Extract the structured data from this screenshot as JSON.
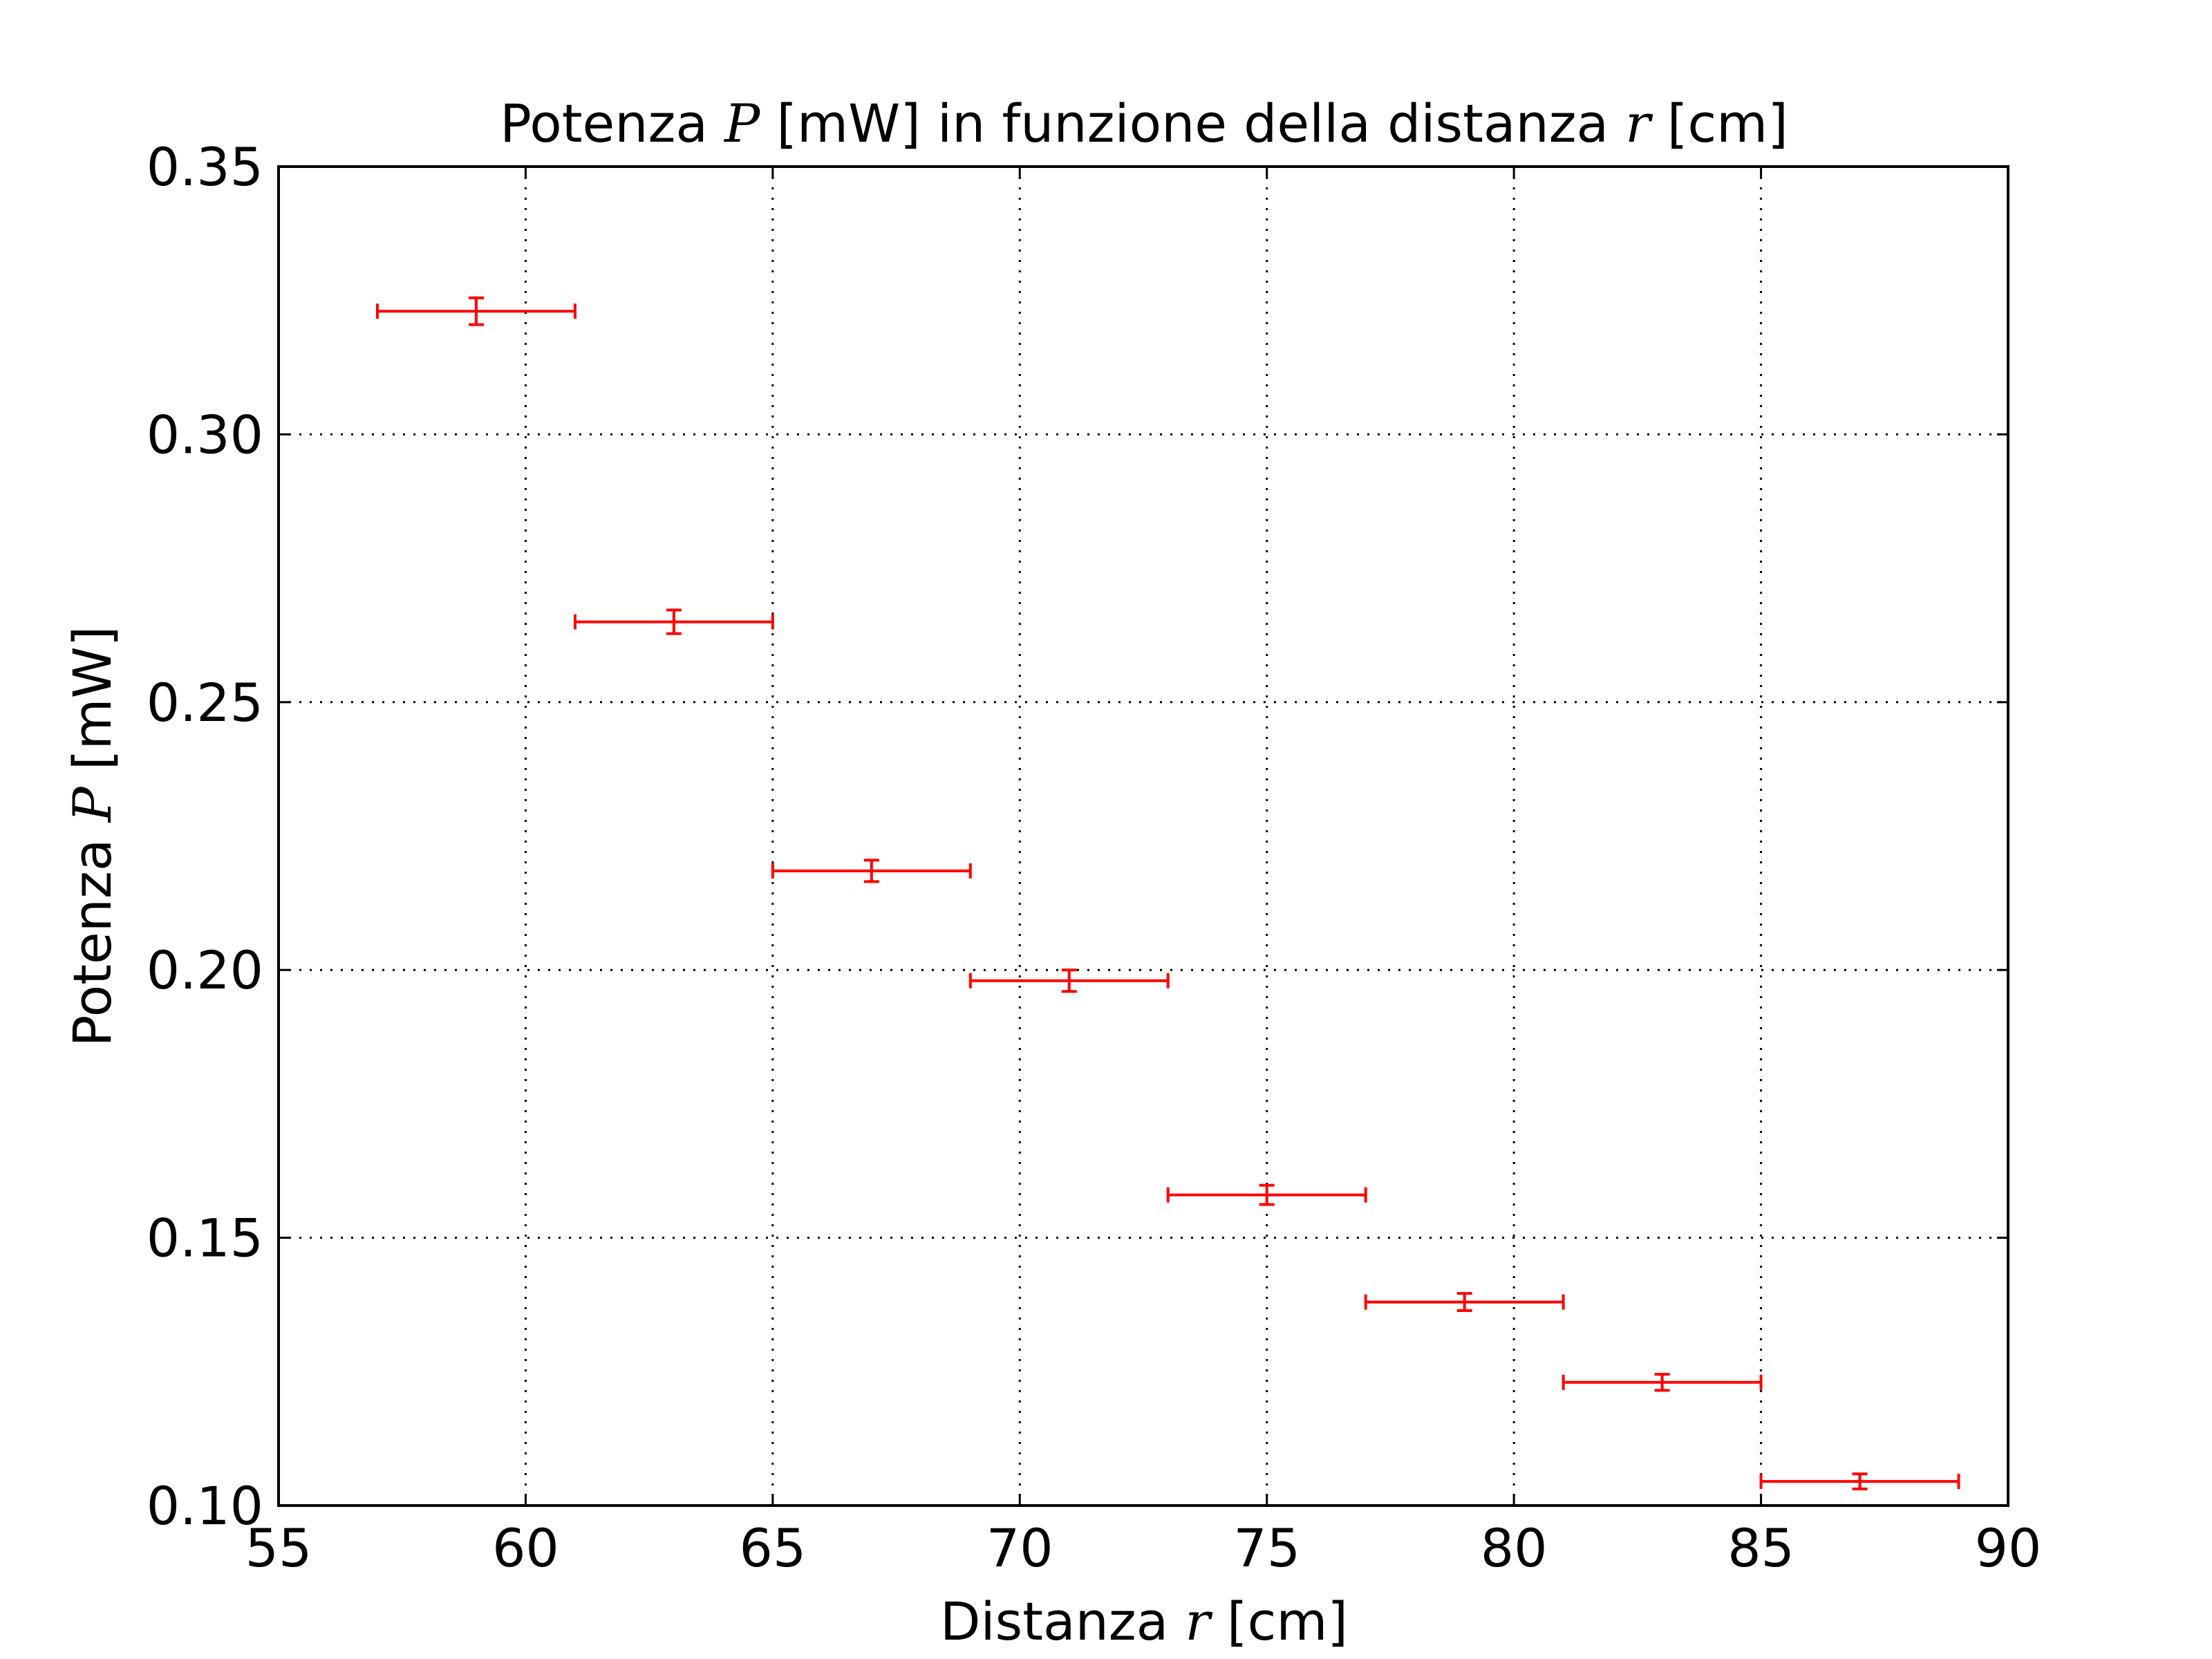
{
  "chart_data": {
    "type": "scatter",
    "title": {
      "prefix": "Potenza ",
      "var1": "P",
      "middle": " [mW] in funzione della distanza ",
      "var2": "r",
      "suffix": " [cm]"
    },
    "xlabel": {
      "prefix": "Distanza ",
      "var": "r",
      "suffix": " [cm]"
    },
    "ylabel": {
      "prefix": "Potenza ",
      "var": "P",
      "suffix": " [mW]"
    },
    "xlim": [
      55,
      90
    ],
    "ylim": [
      0.1,
      0.35
    ],
    "xticks": [
      "55",
      "60",
      "65",
      "70",
      "75",
      "80",
      "85",
      "90"
    ],
    "yticks": [
      "0.10",
      "0.15",
      "0.20",
      "0.25",
      "0.30",
      "0.35"
    ],
    "grid": true,
    "marker_color": "#ff0000",
    "points": [
      {
        "x": 59,
        "y": 0.323,
        "xerr": 2,
        "yerr": 0.0025
      },
      {
        "x": 63,
        "y": 0.265,
        "xerr": 2,
        "yerr": 0.0022
      },
      {
        "x": 67,
        "y": 0.2185,
        "xerr": 2,
        "yerr": 0.002
      },
      {
        "x": 71,
        "y": 0.198,
        "xerr": 2,
        "yerr": 0.002
      },
      {
        "x": 75,
        "y": 0.158,
        "xerr": 2,
        "yerr": 0.0018
      },
      {
        "x": 79,
        "y": 0.138,
        "xerr": 2,
        "yerr": 0.0016
      },
      {
        "x": 83,
        "y": 0.123,
        "xerr": 2,
        "yerr": 0.0015
      },
      {
        "x": 87,
        "y": 0.1045,
        "xerr": 2,
        "yerr": 0.0014
      }
    ]
  }
}
